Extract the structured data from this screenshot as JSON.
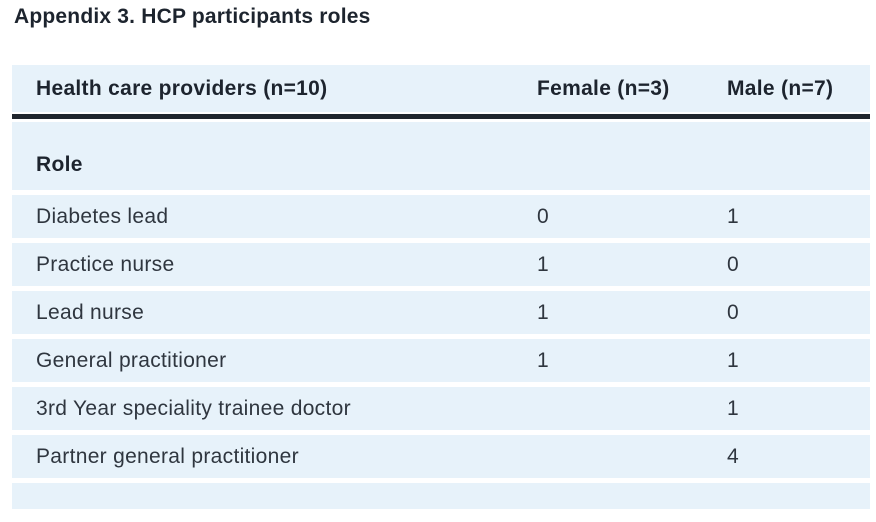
{
  "page": {
    "title": "Appendix 3. HCP participants roles"
  },
  "table": {
    "header": {
      "provider": "Health care providers (n=10)",
      "female": "Female (n=3)",
      "male": "Male (n=7)"
    },
    "section_label": "Role",
    "rows": [
      {
        "role": "Diabetes lead",
        "female": "0",
        "male": "1"
      },
      {
        "role": "Practice nurse",
        "female": "1",
        "male": "0"
      },
      {
        "role": "Lead nurse",
        "female": "1",
        "male": "0"
      },
      {
        "role": "General practitioner",
        "female": "1",
        "male": "1"
      },
      {
        "role": "3rd Year speciality trainee doctor",
        "female": "",
        "male": "1"
      },
      {
        "role": "Partner general practitioner",
        "female": "",
        "male": "4"
      }
    ]
  },
  "colors": {
    "row_background": "#e7f2fa",
    "header_divider": "#20262e",
    "body_text": "#2f363f",
    "heading_text": "#1d242e"
  }
}
